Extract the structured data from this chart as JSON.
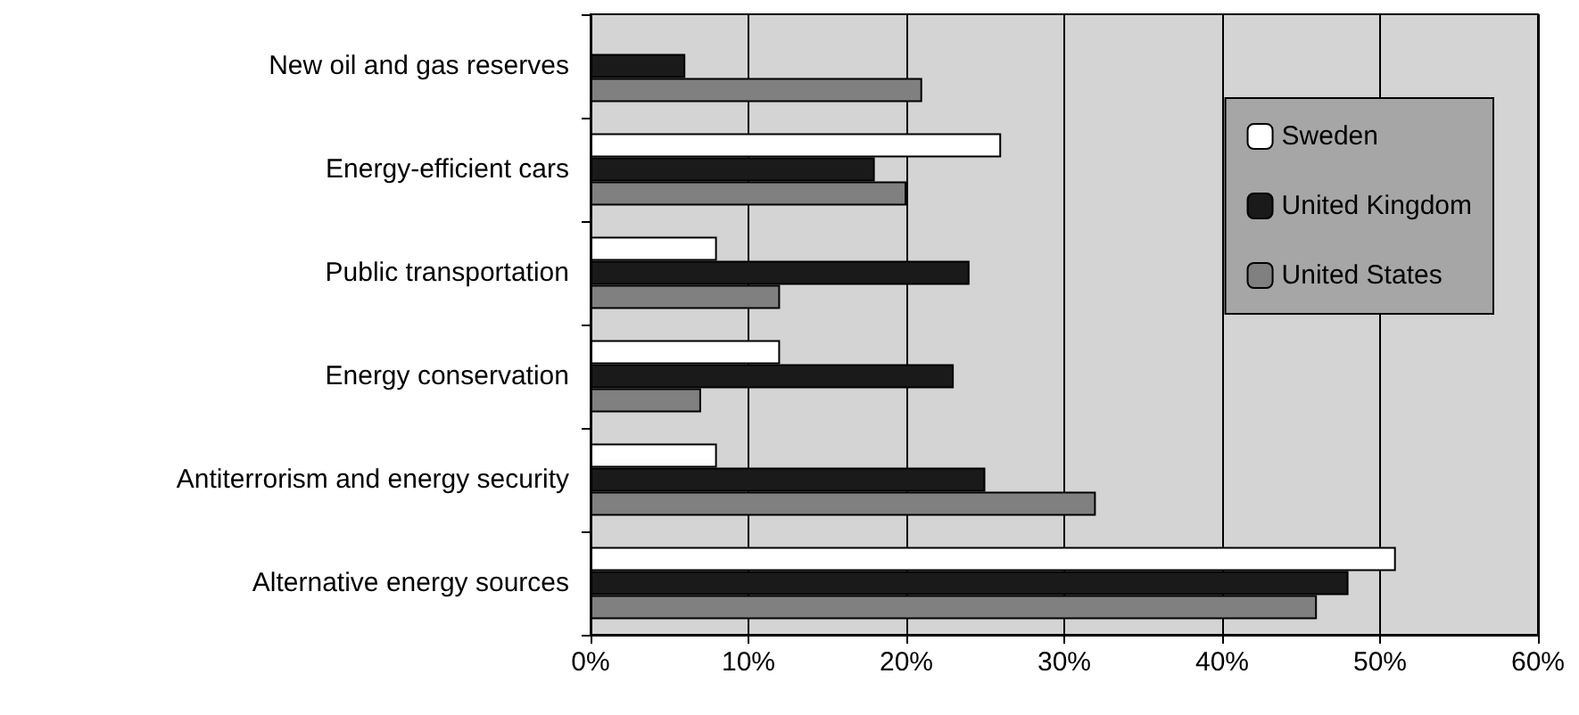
{
  "chart_data": {
    "type": "bar",
    "orientation": "horizontal",
    "categories": [
      "New oil and gas reserves",
      "Energy-efficient cars",
      "Public transportation",
      "Energy conservation",
      "Antiterrorism and energy security",
      "Alternative energy sources"
    ],
    "series": [
      {
        "name": "Sweden",
        "color": "#ffffff",
        "values": [
          null,
          26,
          8,
          12,
          8,
          51
        ]
      },
      {
        "name": "United Kingdom",
        "color": "#1a1a1a",
        "values": [
          6,
          18,
          24,
          23,
          25,
          48
        ]
      },
      {
        "name": "United States",
        "color": "#808080",
        "values": [
          21,
          20,
          12,
          7,
          32,
          46
        ]
      }
    ],
    "xlim": [
      0,
      60
    ],
    "xticks": [
      {
        "value": 0,
        "label": "0%"
      },
      {
        "value": 10,
        "label": "10%"
      },
      {
        "value": 20,
        "label": "20%"
      },
      {
        "value": 30,
        "label": "30%"
      },
      {
        "value": 40,
        "label": "40%"
      },
      {
        "value": 50,
        "label": "50%"
      },
      {
        "value": 60,
        "label": "60%"
      }
    ],
    "grid": "x",
    "legend": "top right"
  }
}
